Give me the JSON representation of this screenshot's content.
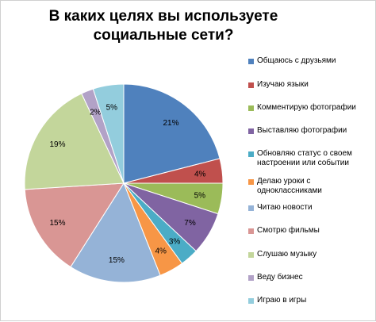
{
  "chart_data": {
    "type": "pie",
    "title": "В каких целях вы используете социальные сети?",
    "slices": [
      {
        "name": "Общаюсь с друзьями",
        "value": 21,
        "label": "21%",
        "color": "#4f81bd"
      },
      {
        "name": "Изучаю языки",
        "value": 4,
        "label": "4%",
        "color": "#c0504d"
      },
      {
        "name": "Комментирую фотографии",
        "value": 5,
        "label": "5%",
        "color": "#9bbb59"
      },
      {
        "name": "Выставляю фотографии",
        "value": 7,
        "label": "7%",
        "color": "#8064a2"
      },
      {
        "name": "Обновляю статус о своем настроении или событии",
        "value": 3,
        "label": "3%",
        "color": "#4bacc6"
      },
      {
        "name": "Делаю уроки с одноклассниками",
        "value": 4,
        "label": "4%",
        "color": "#f79646"
      },
      {
        "name": "Читаю новости",
        "value": 15,
        "label": "15%",
        "color": "#95b3d7"
      },
      {
        "name": "Смотрю фильмы",
        "value": 15,
        "label": "15%",
        "color": "#d99694"
      },
      {
        "name": "Слушаю музыку",
        "value": 19,
        "label": "19%",
        "color": "#c3d69b"
      },
      {
        "name": "Веду бизнес",
        "value": 2,
        "label": "2%",
        "color": "#b2a2c7"
      },
      {
        "name": "Играю в игры",
        "value": 5,
        "label": "5%",
        "color": "#93cddd"
      }
    ],
    "legend_position": "right"
  }
}
